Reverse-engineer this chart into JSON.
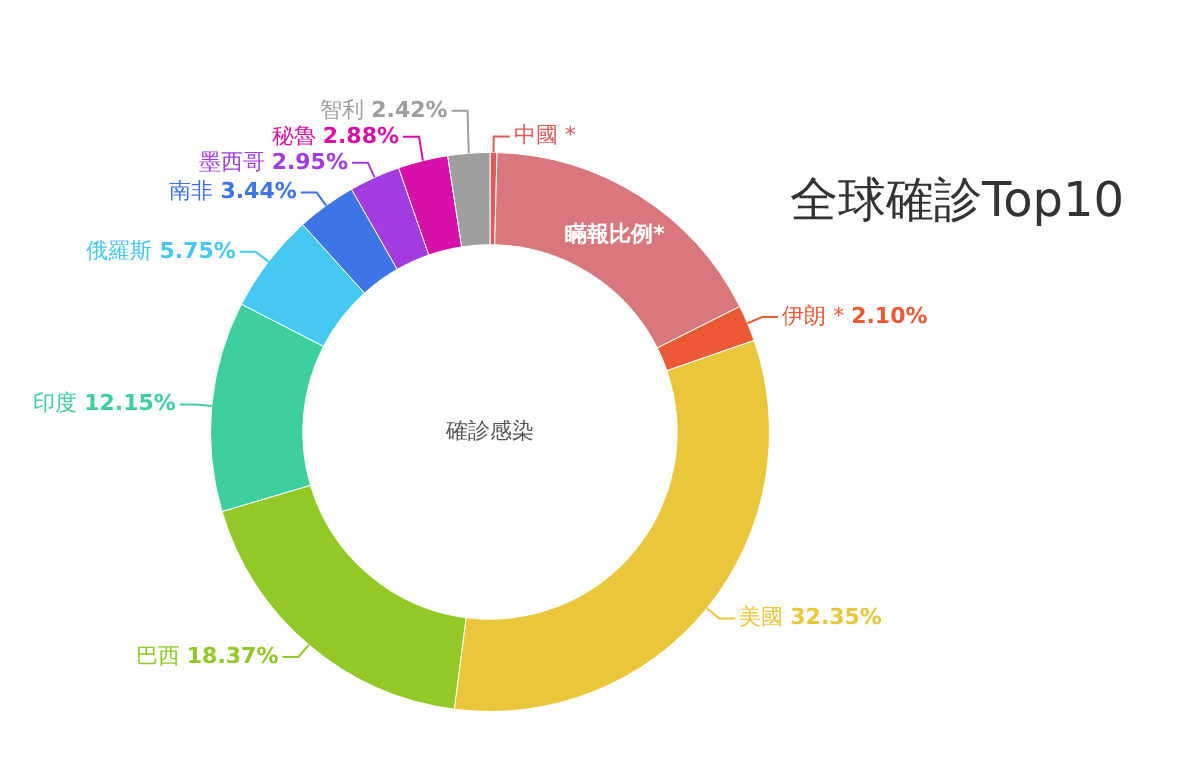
{
  "chart_data": {
    "type": "donut",
    "title": "全球確診Top10",
    "categories": [
      "中國 *",
      "瞞報比例*",
      "伊朗 *",
      "美國",
      "巴西",
      "印度",
      "俄羅斯",
      "南非",
      "墨西哥",
      "秘魯",
      "智利"
    ],
    "values": [
      0.4,
      17.19,
      2.1,
      32.35,
      18.37,
      12.15,
      5.75,
      3.44,
      2.95,
      2.88,
      2.42
    ],
    "colors": [
      "#e05a5a",
      "#d9777c",
      "#ec5a35",
      "#e9c63a",
      "#93c926",
      "#3ecfa0",
      "#45c8f2",
      "#3d74e6",
      "#a23be0",
      "#d80fa8",
      "#9e9e9e"
    ],
    "value_labels": [
      null,
      null,
      "2.10%",
      "32.35%",
      "18.37%",
      "12.15%",
      "5.75%",
      "3.44%",
      "2.95%",
      "2.88%",
      "2.42%"
    ],
    "annotations": [
      "確診感染"
    ]
  }
}
